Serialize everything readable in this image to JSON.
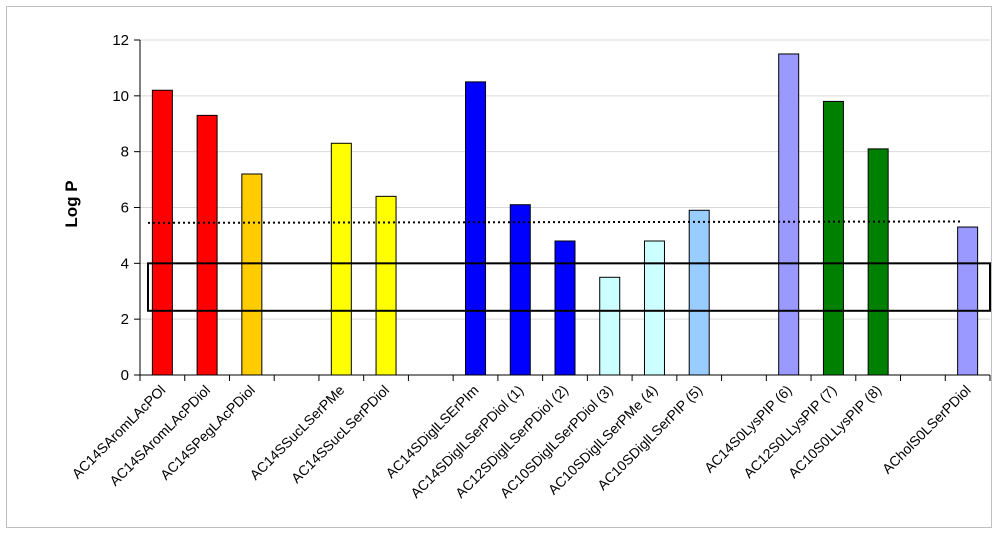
{
  "chart_data": {
    "type": "bar",
    "ylabel": "Log P",
    "xlabel": "",
    "ylim": [
      0,
      12
    ],
    "yticks": [
      0,
      2,
      4,
      6,
      8,
      10,
      12
    ],
    "grid": true,
    "categories": [
      "AC14SAromLAcPOl",
      "AC14SAromLAcPDiol",
      "AC14SPegLAcPDiol",
      "",
      "AC14SSucLSerPMe",
      "AC14SSucLSerPDiol",
      "",
      "AC14SDiglLSErPIm",
      "AC14SDiglLSerPDiol (1)",
      "AC12SDiglLSerPDiol (2)",
      "AC10SDiglLSerPDiol (3)",
      "AC10SDiglLSerPMe (4)",
      "AC10SDiglLSerPIP  (5)",
      "",
      "AC14S0LysPIP  (6)",
      "AC12S0LLysPIP (7)",
      "AC10S0LLysPIP (8)",
      "",
      "ACholS0LSerPDiol"
    ],
    "values": [
      10.2,
      9.3,
      7.2,
      null,
      8.3,
      6.4,
      null,
      10.5,
      6.1,
      4.8,
      3.5,
      4.8,
      5.9,
      null,
      11.5,
      9.8,
      8.1,
      null,
      5.3
    ],
    "bar_colors": [
      "#ff0000",
      "#ff0000",
      "#ffcc00",
      null,
      "#ffff00",
      "#ffff00",
      null,
      "#0000ff",
      "#0000ff",
      "#0000ff",
      "#ccffff",
      "#ccffff",
      "#99ccff",
      null,
      "#9999ff",
      "#008000",
      "#008000",
      null,
      "#9999ff"
    ],
    "reference_line": {
      "value_start": 5.45,
      "value_end": 5.5,
      "style": "dotted"
    },
    "highlight_band": {
      "y_min": 2.3,
      "y_max": 4.0
    }
  }
}
